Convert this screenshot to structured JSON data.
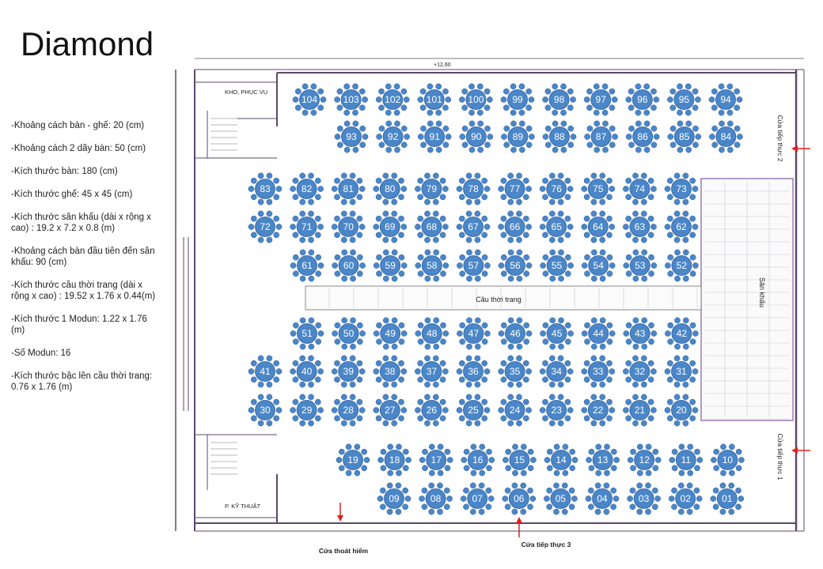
{
  "title": "Diamond",
  "specs": [
    "-Khoảng cách bàn - ghế: 20 (cm)",
    "-Khoảng cách 2 dãy bàn: 50 (cm)",
    "-Kích thước bàn: 180 (cm)",
    "-Kích thước ghế: 45 x 45 (cm)",
    "-Kích thước sân khấu (dài x rộng x cao) : 19.2 x 7.2 x 0.8 (m)",
    "-Khoảng cách bàn đầu tiên đến sân khấu: 90 (cm)",
    "-Kích thước cầu thời trang (dài x rộng x cao) : 19.52 x 1.76 x 0.44(m)",
    "-Kích thước 1 Modun: 1.22 x 1.76 (m)",
    "-Số Modun: 16",
    "-Kích thước bậc lên cầu thời trang: 0.76 x 1.76 (m)"
  ],
  "labels": {
    "storage": "KHO, PHỤC VỤ",
    "tech_room": "P. KỸ THUẬT",
    "runway": "Cầu thời trang",
    "stage": "Sân khấu",
    "service_door_1": "Cửa tiếp thực 1",
    "service_door_2": "Cửa tiếp thực 2",
    "service_door_3": "Cửa tiếp thực 3",
    "emergency_exit": "Cửa thoát hiểm",
    "dimension": "+12,60"
  },
  "colors": {
    "table_fill": "#4a86c8",
    "table_stroke": "#2e5f9a",
    "arrow": "#e02020",
    "wall": "#5a4a6a",
    "stage_border": "#9a7ab0"
  },
  "table_rows": [
    [
      "104",
      "103",
      "102",
      "101",
      "100",
      "99",
      "98",
      "97",
      "96",
      "95",
      "94"
    ],
    [
      "93",
      "92",
      "91",
      "90",
      "89",
      "88",
      "87",
      "86",
      "85",
      "84"
    ],
    [
      "83",
      "82",
      "81",
      "80",
      "79",
      "78",
      "77",
      "76",
      "75",
      "74",
      "73"
    ],
    [
      "72",
      "71",
      "70",
      "69",
      "68",
      "67",
      "66",
      "65",
      "64",
      "63",
      "62"
    ],
    [
      "61",
      "60",
      "59",
      "58",
      "57",
      "56",
      "55",
      "54",
      "53",
      "52"
    ],
    [
      "51",
      "50",
      "49",
      "48",
      "47",
      "46",
      "45",
      "44",
      "43",
      "42"
    ],
    [
      "41",
      "40",
      "39",
      "38",
      "37",
      "36",
      "35",
      "34",
      "33",
      "32",
      "31"
    ],
    [
      "30",
      "29",
      "28",
      "27",
      "26",
      "25",
      "24",
      "23",
      "22",
      "21",
      "20"
    ],
    [
      "19",
      "18",
      "17",
      "16",
      "15",
      "14",
      "13",
      "12",
      "11",
      "10"
    ],
    [
      "09",
      "08",
      "07",
      "06",
      "05",
      "04",
      "03",
      "02",
      "01"
    ]
  ]
}
